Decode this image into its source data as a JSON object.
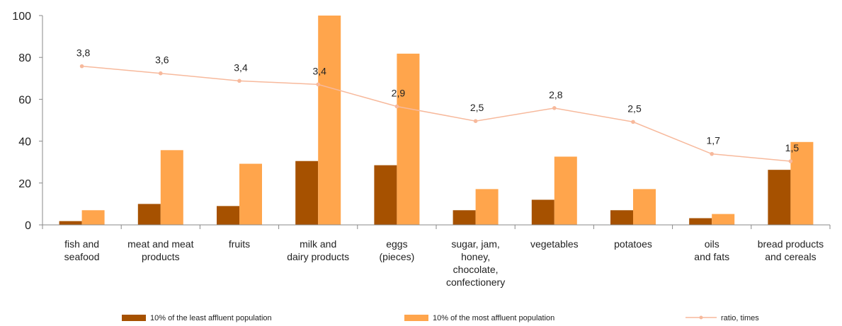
{
  "colors": {
    "least": "#a65100",
    "most": "#ffa54c",
    "ratio": "#f7b99c",
    "axis": "#888888"
  },
  "chart_data": {
    "type": "bar",
    "categories": [
      [
        "fish and",
        "seafood"
      ],
      [
        "meat and meat",
        "products"
      ],
      [
        "fruits"
      ],
      [
        "milk and",
        "dairy products"
      ],
      [
        "eggs",
        "(pieces)"
      ],
      [
        "sugar, jam,",
        "honey,",
        "chocolate,",
        "confectionery"
      ],
      [
        "vegetables"
      ],
      [
        "potatoes"
      ],
      [
        "oils",
        "and fats"
      ],
      [
        "bread products",
        "and cereals"
      ]
    ],
    "series": [
      {
        "name": "10% of the least affluent population",
        "values": [
          1.8,
          10,
          9,
          30.5,
          28.5,
          7,
          12,
          7,
          3.2,
          26.3
        ]
      },
      {
        "name": "10% of the most affluent population",
        "values": [
          7,
          35.7,
          29.2,
          100,
          81.8,
          17.1,
          32.6,
          17.1,
          5.2,
          39.6
        ]
      },
      {
        "name": "ratio, times",
        "type": "line",
        "values": [
          75.8,
          72.4,
          68.8,
          67.1,
          56.6,
          49.6,
          55.8,
          49.2,
          33.9,
          30.4
        ],
        "labels": [
          "3,8",
          "3,6",
          "3,4",
          "3,4",
          "2,9",
          "2,5",
          "2,8",
          "2,5",
          "1,7",
          "1,5"
        ]
      }
    ],
    "yticks": [
      0,
      20,
      40,
      60,
      80,
      100
    ],
    "ylim": [
      0,
      100
    ],
    "grid": false,
    "legend_position": "bottom"
  }
}
